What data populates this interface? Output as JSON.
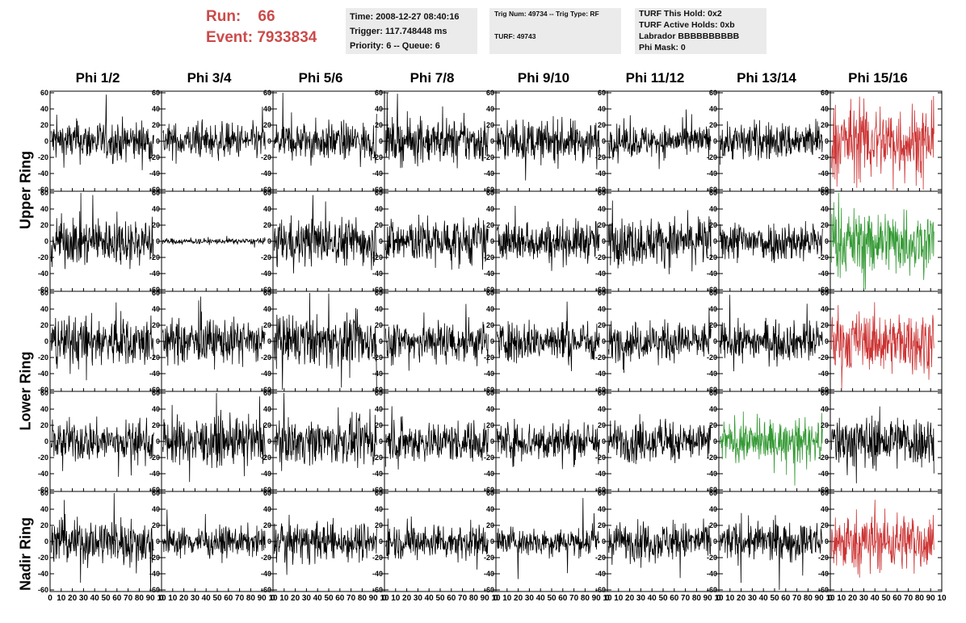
{
  "run_info": {
    "run_label": "Run:",
    "run_value": "66",
    "event_label": "Event:",
    "event_value": "7933834"
  },
  "time_box": {
    "line1": "Time: 2008-12-27 08:40:16",
    "line2": "Trigger: 117.748448 ms",
    "line3": "Priority: 6 -- Queue: 6"
  },
  "trig_box": {
    "line1": "Trig Num: 49734 -- Trig Type: RF",
    "line2": "TURF: 49743"
  },
  "turf_box": {
    "line1": "TURF This Hold: 0x2",
    "line2": "TURF Active Holds: 0xb",
    "line3": "Labrador BBBBBBBBBB",
    "line4": "Phi Mask: 0"
  },
  "colors": {
    "red": "#cc3333",
    "green": "#339933",
    "black": "#000000"
  },
  "chart_data": {
    "type": "line",
    "columns": [
      "Phi 1/2",
      "Phi 3/4",
      "Phi 5/6",
      "Phi 7/8",
      "Phi 9/10",
      "Phi 11/12",
      "Phi 13/14",
      "Phi 15/16"
    ],
    "row_labels": [
      "Upper Ring",
      "Lower Ring",
      "Nadir Ring"
    ],
    "ylim": [
      -60,
      60
    ],
    "xlim": [
      0,
      100
    ],
    "y_ticks": [
      -60,
      -40,
      -20,
      0,
      20,
      40,
      60
    ],
    "x_ticks": [
      0,
      10,
      20,
      30,
      40,
      50,
      60,
      70,
      80,
      90,
      100
    ],
    "x_tick_labels_row": "0 10 20 30 40 50 60 70 80 90 10",
    "panel_rows": 5,
    "amplitudes": [
      [
        14,
        12,
        13,
        15,
        14,
        11,
        13,
        26
      ],
      [
        16,
        2,
        16,
        16,
        14,
        16,
        14,
        22
      ],
      [
        17,
        15,
        17,
        15,
        14,
        13,
        13,
        20
      ],
      [
        14,
        16,
        15,
        14,
        14,
        14,
        14,
        18
      ],
      [
        16,
        10,
        13,
        12,
        10,
        13,
        13,
        20
      ]
    ],
    "highlight": [
      [
        "k",
        "k",
        "k",
        "k",
        "k",
        "k",
        "k",
        "red"
      ],
      [
        "k",
        "k",
        "k",
        "k",
        "k",
        "k",
        "k",
        "green"
      ],
      [
        "k",
        "k",
        "k",
        "k",
        "k",
        "k",
        "k",
        "red"
      ],
      [
        "k",
        "k",
        "k",
        "k",
        "k",
        "k",
        "green",
        "k"
      ],
      [
        "k",
        "k",
        "k",
        "k",
        "k",
        "k",
        "k",
        "red"
      ]
    ]
  }
}
